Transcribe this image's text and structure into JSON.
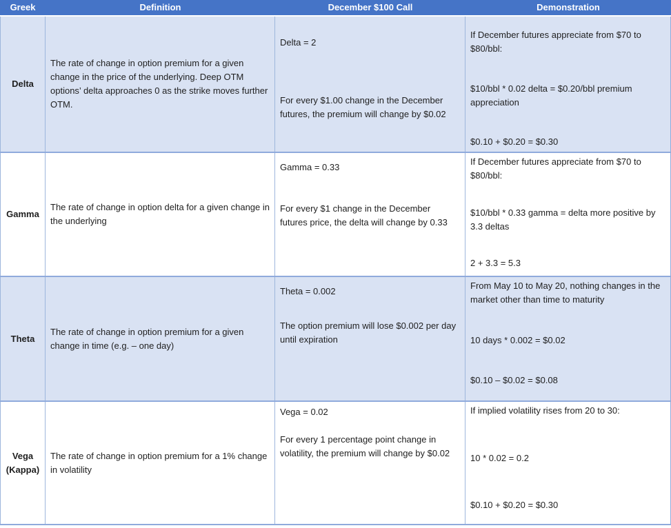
{
  "colors": {
    "header_bg": "#4574C7",
    "header_text": "#FFFFFF",
    "band_bg": "#D9E2F3",
    "border": "#9DB6DC",
    "border_strong": "#8FAADC",
    "text": "#1F1F1F"
  },
  "table": {
    "columns": [
      {
        "label": "Greek"
      },
      {
        "label": "Definition"
      },
      {
        "label": "December $100 Call"
      },
      {
        "label": "Demonstration"
      }
    ],
    "rows": [
      {
        "greek": "Delta",
        "definition": "The rate of change in option premium for a given change in the price of the underlying. Deep OTM options’ delta approaches 0 as the strike moves further OTM.",
        "call": [
          "Delta = 2",
          "For every $1.00 change in the December futures, the premium will change by $0.02"
        ],
        "demonstration": [
          "If December futures appreciate from $70 to $80/bbl:",
          "$10/bbl * 0.02 delta = $0.20/bbl premium appreciation",
          "$0.10 + $0.20 = $0.30"
        ]
      },
      {
        "greek": "Gamma",
        "definition": "The rate of change in option delta for a given change in the underlying",
        "call": [
          "Gamma = 0.33",
          "For every $1 change in the December futures price, the delta will change by 0.33"
        ],
        "demonstration": [
          "If December futures appreciate from $70 to $80/bbl:",
          "$10/bbl * 0.33 gamma = delta more positive by 3.3 deltas",
          "2 + 3.3 = 5.3"
        ]
      },
      {
        "greek": "Theta",
        "definition": "The rate of change in option premium for a given change in time (e.g. – one day)",
        "call": [
          "Theta = 0.002",
          "The option premium will lose $0.002 per day until expiration"
        ],
        "demonstration": [
          "From May 10 to May 20, nothing changes in the market other than time to maturity",
          "10 days * 0.002 = $0.02",
          "$0.10 – $0.02 = $0.08"
        ]
      },
      {
        "greek": "Vega (Kappa)",
        "definition": "The rate of change in option premium for a 1% change in volatility",
        "call": [
          "Vega = 0.02",
          "For every 1 percentage point change in volatility, the premium will change by $0.02"
        ],
        "demonstration": [
          "If implied volatility rises from 20 to 30:",
          "10 * 0.02 = 0.2",
          "$0.10 + $0.20 = $0.30"
        ]
      }
    ]
  }
}
